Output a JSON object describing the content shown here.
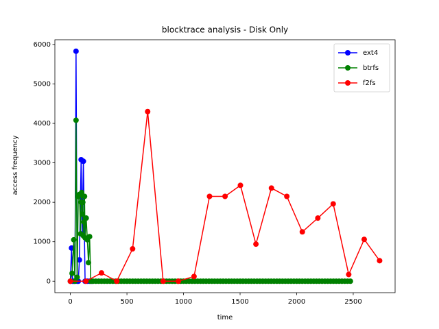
{
  "chart_data": {
    "type": "line",
    "title": "blocktrace analysis - Disk Only",
    "x_label": "time",
    "y_label": "access frequency",
    "xlim": [
      -137,
      2870
    ],
    "ylim": [
      -291,
      6120
    ],
    "xticks": [
      0,
      500,
      1000,
      1500,
      2000,
      2500
    ],
    "yticks": [
      0,
      1000,
      2000,
      3000,
      4000,
      5000,
      6000
    ],
    "legend": "upper right",
    "series": [
      {
        "name": "ext4",
        "color": "#0000ff",
        "x": [
          0,
          10,
          20,
          30,
          40,
          50,
          60,
          70,
          80,
          95,
          105,
          115,
          130,
          150,
          170,
          190
        ],
        "values": [
          0,
          840,
          0,
          0,
          0,
          5830,
          0,
          0,
          540,
          3080,
          1200,
          3040,
          0,
          0,
          0,
          0
        ]
      },
      {
        "name": "btrfs",
        "color": "#008000",
        "x": [
          0,
          15,
          30,
          40,
          50,
          60,
          70,
          80,
          90,
          95,
          100,
          105,
          110,
          115,
          120,
          125,
          130,
          140,
          150,
          160,
          170,
          180,
          200,
          225,
          250,
          275,
          300,
          325,
          350,
          375,
          400,
          425,
          450,
          475,
          500,
          525,
          550,
          575,
          600,
          625,
          650,
          675,
          700,
          725,
          750,
          775,
          800,
          825,
          850,
          875,
          900,
          925,
          950,
          975,
          1000,
          1025,
          1050,
          1075,
          1100,
          1125,
          1150,
          1175,
          1200,
          1225,
          1250,
          1275,
          1300,
          1325,
          1350,
          1375,
          1400,
          1425,
          1450,
          1475,
          1500,
          1525,
          1550,
          1575,
          1600,
          1625,
          1650,
          1675,
          1700,
          1725,
          1750,
          1775,
          1800,
          1825,
          1850,
          1875,
          1900,
          1925,
          1950,
          1975,
          2000,
          2025,
          2050,
          2075,
          2100,
          2125,
          2150,
          2175,
          2200,
          2225,
          2250,
          2275,
          2300,
          2325,
          2350,
          2375,
          2400,
          2425,
          2450,
          2475
        ],
        "values": [
          0,
          200,
          1050,
          0,
          4080,
          100,
          2150,
          2200,
          1200,
          2000,
          2250,
          1700,
          2000,
          1150,
          1500,
          2150,
          1100,
          1600,
          1050,
          470,
          1130,
          0,
          0,
          0,
          0,
          0,
          0,
          0,
          0,
          0,
          0,
          0,
          0,
          0,
          0,
          0,
          0,
          0,
          0,
          0,
          0,
          0,
          0,
          0,
          0,
          0,
          0,
          0,
          0,
          0,
          0,
          0,
          0,
          0,
          0,
          0,
          0,
          0,
          0,
          0,
          0,
          0,
          0,
          0,
          0,
          0,
          0,
          0,
          0,
          0,
          0,
          0,
          0,
          0,
          0,
          0,
          0,
          0,
          0,
          0,
          0,
          0,
          0,
          0,
          0,
          0,
          0,
          0,
          0,
          0,
          0,
          0,
          0,
          0,
          0,
          0,
          0,
          0,
          0,
          0,
          0,
          0,
          0,
          0,
          0,
          0,
          0,
          0,
          0,
          0,
          0,
          0,
          0,
          0
        ]
      },
      {
        "name": "f2fs",
        "color": "#ff0000",
        "x": [
          0,
          137,
          275,
          410,
          550,
          683,
          820,
          955,
          1093,
          1230,
          1367,
          1503,
          1640,
          1777,
          1913,
          2050,
          2187,
          2323,
          2460,
          2597,
          2733
        ],
        "values": [
          0,
          0,
          210,
          0,
          820,
          4300,
          0,
          0,
          120,
          2150,
          2150,
          2430,
          940,
          2360,
          2150,
          1250,
          1600,
          1960,
          170,
          1060,
          520
        ]
      }
    ]
  }
}
